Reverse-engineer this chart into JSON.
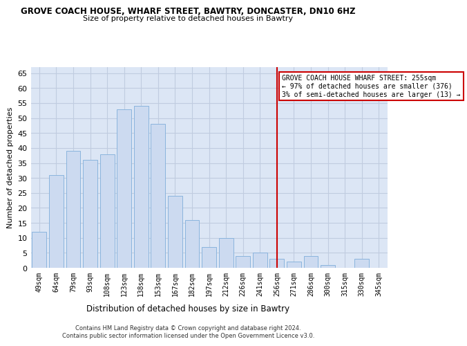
{
  "title": "GROVE COACH HOUSE, WHARF STREET, BAWTRY, DONCASTER, DN10 6HZ",
  "subtitle": "Size of property relative to detached houses in Bawtry",
  "xlabel": "Distribution of detached houses by size in Bawtry",
  "ylabel": "Number of detached properties",
  "bar_labels": [
    "49sqm",
    "64sqm",
    "79sqm",
    "93sqm",
    "108sqm",
    "123sqm",
    "138sqm",
    "153sqm",
    "167sqm",
    "182sqm",
    "197sqm",
    "212sqm",
    "226sqm",
    "241sqm",
    "256sqm",
    "271sqm",
    "286sqm",
    "300sqm",
    "315sqm",
    "330sqm",
    "345sqm"
  ],
  "bar_values": [
    12,
    31,
    39,
    36,
    38,
    53,
    54,
    48,
    24,
    16,
    7,
    10,
    4,
    5,
    3,
    2,
    4,
    1,
    0,
    3,
    0
  ],
  "bar_color": "#ccdaf0",
  "bar_edge_color": "#8ab4dd",
  "vline_x_index": 14,
  "vline_color": "#cc0000",
  "annotation_title": "GROVE COACH HOUSE WHARF STREET: 255sqm",
  "annotation_line1": "← 97% of detached houses are smaller (376)",
  "annotation_line2": "3% of semi-detached houses are larger (13) →",
  "annotation_box_color": "#ffffff",
  "annotation_box_edge_color": "#cc0000",
  "ylim": [
    0,
    67
  ],
  "yticks": [
    0,
    5,
    10,
    15,
    20,
    25,
    30,
    35,
    40,
    45,
    50,
    55,
    60,
    65
  ],
  "background_color": "#ffffff",
  "plot_bg_color": "#dce6f5",
  "grid_color": "#c0cce0",
  "footer_line1": "Contains HM Land Registry data © Crown copyright and database right 2024.",
  "footer_line2": "Contains public sector information licensed under the Open Government Licence v3.0."
}
